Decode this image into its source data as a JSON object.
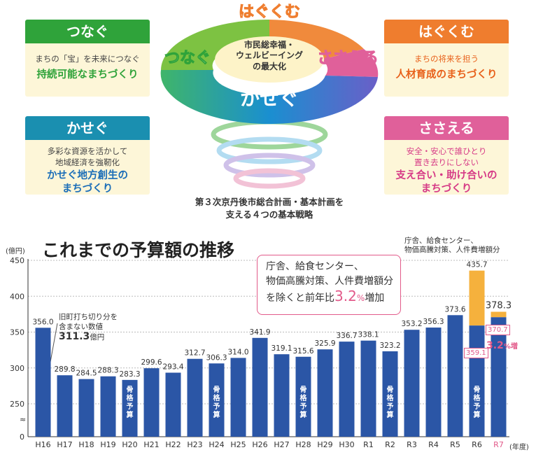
{
  "strategies": {
    "tsunagu": {
      "head": "つなぐ",
      "sub": "まちの「宝」を未来につなぐ",
      "main": "持続可能なまちづくり",
      "color": "#2fa33a"
    },
    "kasegu": {
      "head": "かせぐ",
      "sub1": "多彩な資源を活かして",
      "sub2": "地域経済を強靭化",
      "main1": "かせぐ地方創生の",
      "main2": "まちづくり",
      "color": "#1a8fb0"
    },
    "hagukumu": {
      "head": "はぐくむ",
      "sub": "まちの将来を担う",
      "main": "人材育成のまちづくり",
      "color": "#ef7d2e"
    },
    "sasaeru": {
      "head": "ささえる",
      "sub1": "安全・安心で誰ひとり",
      "sub2": "置き去りにしない",
      "main1": "支え合い・助け合いの",
      "main2": "まちづくり",
      "color": "#e0609a"
    }
  },
  "ring": {
    "center1": "市民総幸福・",
    "center2": "ウェルビーイング",
    "center3": "の最大化",
    "top": "はぐくむ",
    "left": "つなぐ",
    "right": "ささえる",
    "bottom": "かせぐ",
    "caption1": "第３次京丹後市総合計画・基本計画を",
    "caption2": "支える４つの基本戦略"
  },
  "chart_data": {
    "type": "bar",
    "title": "これまでの予算額の推移",
    "ylabel": "(億円)",
    "xlabel": "(年度)",
    "ylim": [
      0,
      450
    ],
    "axis_break": true,
    "yticks": [
      0,
      250,
      300,
      350,
      400,
      450
    ],
    "categories": [
      "H16",
      "H17",
      "H18",
      "H19",
      "H20",
      "H21",
      "H22",
      "H23",
      "H24",
      "H25",
      "H26",
      "H27",
      "H28",
      "H29",
      "H30",
      "R1",
      "R2",
      "R3",
      "R4",
      "R5",
      "R6",
      "R7"
    ],
    "values": [
      356.0,
      289.8,
      284.5,
      288.3,
      283.3,
      299.6,
      293.4,
      312.7,
      306.3,
      314.0,
      341.9,
      319.1,
      315.6,
      325.9,
      336.7,
      338.1,
      323.2,
      353.2,
      356.3,
      373.6,
      435.7,
      378.3
    ],
    "base_values": {
      "R6": 359.1,
      "R7": 370.7
    },
    "skeleton_budget_label": "骨格予算",
    "skeleton_years": [
      "H20",
      "H24",
      "H28",
      "R2",
      "R6"
    ],
    "bar_color": "#2b56a6",
    "extra_color": "#f5b13d",
    "highlight_category": "R7",
    "highlight_color": "#e25a8a",
    "annotations": {
      "h16_note1": "旧町打ち切り分を",
      "h16_note2": "含まない数値",
      "h16_value": "311.3",
      "h16_unit": "億円",
      "callout1": "庁舎、給食センター、",
      "callout2": "物価高騰対策、人件費増額分",
      "callout3": "を除くと前年比",
      "callout_pct": "3.2",
      "callout_pct_unit": "%",
      "callout_tail": "増加",
      "r6_note1": "庁舎、給食センター、",
      "r6_note2": "物価高騰対策、人件費増額分",
      "r7_increase": "3.2",
      "r7_increase_unit": "%増"
    }
  }
}
